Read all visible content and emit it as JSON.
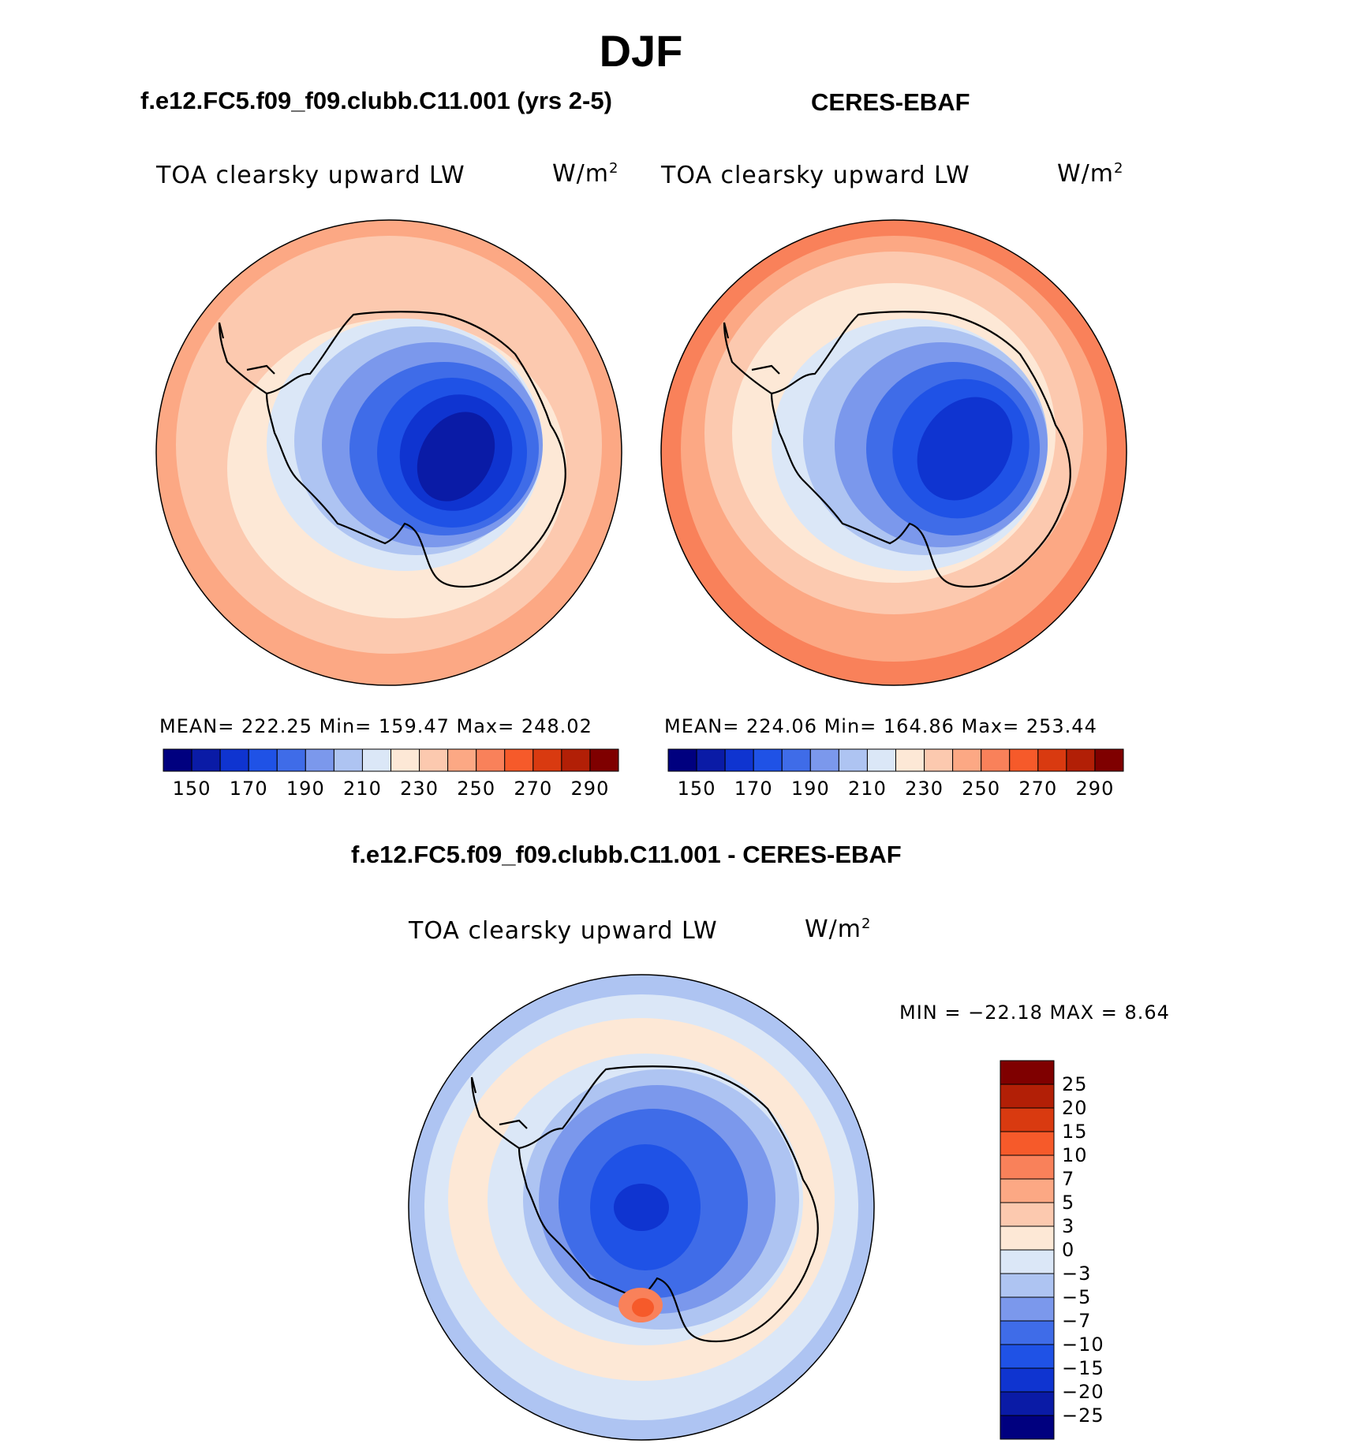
{
  "title": "DJF",
  "panels": [
    {
      "heading": "f.e12.FC5.f09_f09.clubb.C11.001 (yrs 2-5)",
      "variable": "TOA clearsky upward LW",
      "units_base": "W/m",
      "units_exp": "2",
      "stats": "MEAN= 222.25   Min= 159.47   Max= 248.02"
    },
    {
      "heading": "CERES-EBAF",
      "variable": "TOA clearsky upward LW",
      "units_base": "W/m",
      "units_exp": "2",
      "stats": "MEAN= 224.06   Min= 164.86   Max= 253.44"
    },
    {
      "heading": "f.e12.FC5.f09_f09.clubb.C11.001 - CERES-EBAF",
      "variable": "TOA clearsky upward LW",
      "units_base": "W/m",
      "units_exp": "2",
      "stats": "MIN = −22.18 MAX =     8.64"
    }
  ],
  "chart_data": [
    {
      "type": "heatmap",
      "projection": "south-polar-stereographic",
      "title": "TOA clearsky upward LW",
      "units": "W/m2",
      "mean": 222.25,
      "min": 159.47,
      "max": 248.02,
      "colorbar_ticks": [
        "150",
        "170",
        "190",
        "210",
        "230",
        "250",
        "270",
        "290"
      ],
      "palette": [
        "#00007f",
        "#0a1ba6",
        "#0f34d0",
        "#1f52e6",
        "#3f6ce8",
        "#7b98ec",
        "#aec4f2",
        "#dbe7f7",
        "#fde8d6",
        "#fcc9af",
        "#fca884",
        "#f9815a",
        "#f65a2a",
        "#d93a10",
        "#b21f06",
        "#7f0000"
      ]
    },
    {
      "type": "heatmap",
      "projection": "south-polar-stereographic",
      "title": "TOA clearsky upward LW",
      "units": "W/m2",
      "mean": 224.06,
      "min": 164.86,
      "max": 253.44,
      "colorbar_ticks": [
        "150",
        "170",
        "190",
        "210",
        "230",
        "250",
        "270",
        "290"
      ],
      "palette": [
        "#00007f",
        "#0a1ba6",
        "#0f34d0",
        "#1f52e6",
        "#3f6ce8",
        "#7b98ec",
        "#aec4f2",
        "#dbe7f7",
        "#fde8d6",
        "#fcc9af",
        "#fca884",
        "#f9815a",
        "#f65a2a",
        "#d93a10",
        "#b21f06",
        "#7f0000"
      ]
    },
    {
      "type": "heatmap",
      "projection": "south-polar-stereographic",
      "title": "TOA clearsky upward LW",
      "units": "W/m2",
      "min": -22.18,
      "max": 8.64,
      "colorbar_ticks": [
        "25",
        "20",
        "15",
        "10",
        "7",
        "5",
        "3",
        "0",
        "−3",
        "−5",
        "−7",
        "−10",
        "−15",
        "−20",
        "−25"
      ],
      "palette": [
        "#7f0000",
        "#b21f06",
        "#d93a10",
        "#f65a2a",
        "#f9815a",
        "#fca884",
        "#fcc9af",
        "#fde8d6",
        "#dbe7f7",
        "#aec4f2",
        "#7b98ec",
        "#3f6ce8",
        "#1f52e6",
        "#0f34d0",
        "#0a1ba6",
        "#00007f"
      ]
    }
  ]
}
